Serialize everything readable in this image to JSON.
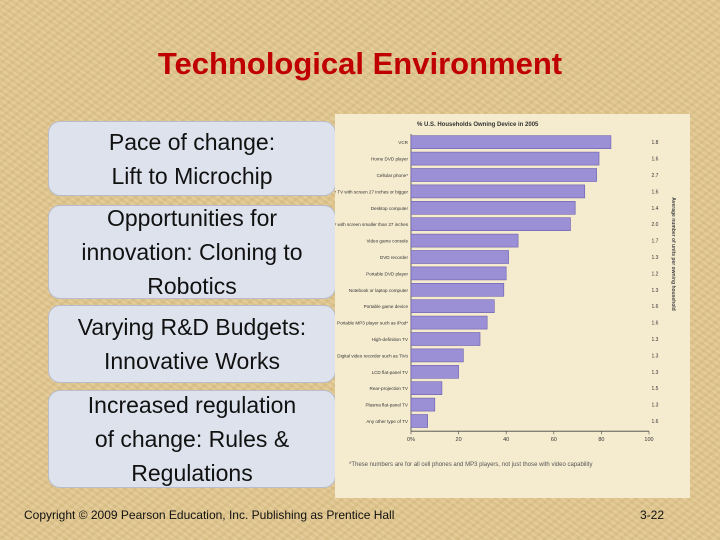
{
  "slide": {
    "title": "Technological Environment",
    "bullets": [
      "Pace of change:\nLift to Microchip",
      "Opportunities for\ninnovation: Cloning to\nRobotics",
      "Varying R&D Budgets:\nInnovative Works",
      "Increased regulation\nof change: Rules &\nRegulations"
    ],
    "copyright": "Copyright © 2009 Pearson Education, Inc.  Publishing as Prentice Hall",
    "page_number": "3-22"
  },
  "chart_data": {
    "type": "bar",
    "orientation": "horizontal",
    "title": "% U.S. Households Owning Device in 2005",
    "right_axis_label": "Average number of units per owning household",
    "note": "*These numbers are for all cell phones and MP3 players, not just those with video capability",
    "xlim": [
      0,
      100
    ],
    "xticks": [
      "0%",
      "20",
      "40",
      "60",
      "80",
      "100"
    ],
    "categories": [
      "VCR",
      "Home DVD player",
      "Cellular phone*",
      "Color TV with screen 27 inches or bigger",
      "Desktop computer",
      "Color TV with screen smaller than 27 inches",
      "Video game console",
      "DVD recorder",
      "Portable DVD player",
      "Notebook or laptop computer",
      "Portable game device",
      "Portable MP3 player such as iPod*",
      "High-definition TV",
      "Digital video recorder such as TiVo",
      "LCD flat-panel TV",
      "Rear-projection TV",
      "Plasma flat-panel TV",
      "Any other type of TV"
    ],
    "values": [
      84,
      79,
      78,
      73,
      69,
      67,
      45,
      41,
      40,
      39,
      35,
      32,
      29,
      22,
      20,
      13,
      10,
      7
    ],
    "units_per_household": [
      "1.8",
      "1.6",
      "2.7",
      "1.6",
      "1.4",
      "2.0",
      "1.7",
      "1.3",
      "1.2",
      "1.3",
      "1.6",
      "1.6",
      "1.3",
      "1.3",
      "1.3",
      "1.5",
      "1.3",
      "1.6"
    ],
    "bar_color": "#9b8fd6",
    "bar_edge_color": "#6a5fb0",
    "grid": false
  }
}
